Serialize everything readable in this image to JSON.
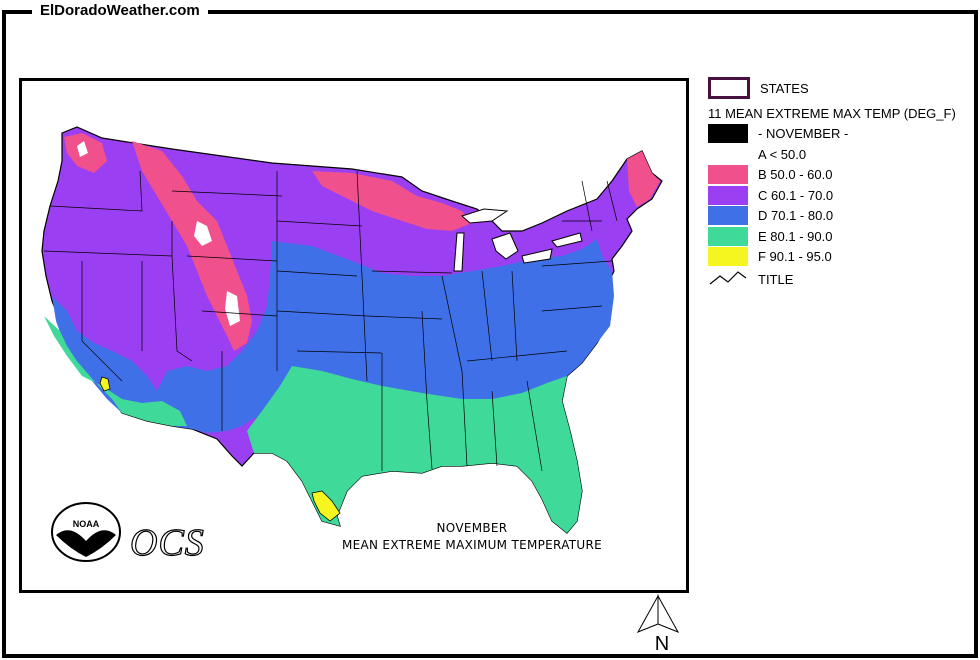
{
  "site": {
    "title": "ElDoradoWeather.com"
  },
  "map": {
    "caption_line1": "NOVEMBER",
    "caption_line2": "MEAN EXTREME MAXIMUM TEMPERATURE",
    "ocs_label": "OCS",
    "noaa_label": "NOAA"
  },
  "legend": {
    "states_label": "STATES",
    "layer_title": "11 MEAN EXTREME MAX TEMP (DEG_F)",
    "month_label": "- NOVEMBER -",
    "classes": [
      {
        "label": "A < 50.0",
        "color": "#ffffff"
      },
      {
        "label": "B 50.0 - 60.0",
        "color": "#f0508c"
      },
      {
        "label": "C 60.1 - 70.0",
        "color": "#9b3ff2"
      },
      {
        "label": "D 70.1 - 80.0",
        "color": "#4070e8"
      },
      {
        "label": "E 80.1 - 90.0",
        "color": "#3fd99a"
      },
      {
        "label": "F 90.1 - 95.0",
        "color": "#f5f520"
      }
    ],
    "title_label": "TITLE",
    "month_swatch_color": "#000000",
    "states_outline_color": "#4a1040"
  },
  "north_arrow": {
    "label": "N"
  }
}
